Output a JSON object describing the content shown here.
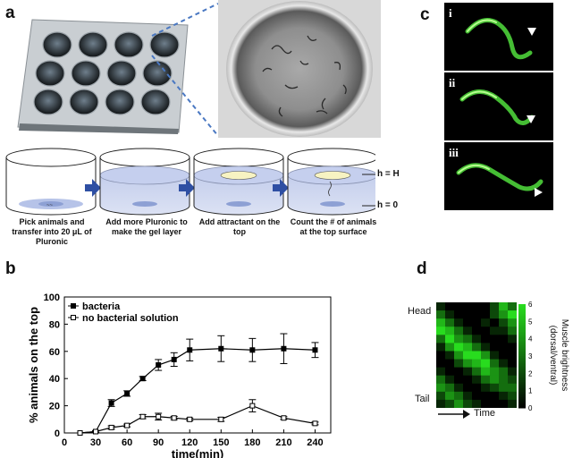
{
  "panels": {
    "a": {
      "letter": "a",
      "steps": [
        "Pick animals and transfer into 20 μL of Pluronic",
        "Add more Pluronic to make the gel layer",
        "Add attractant on the top",
        "Count the # of animals at the top surface"
      ],
      "height_labels": [
        "h = H",
        "h = 0"
      ]
    },
    "b": {
      "letter": "b"
    },
    "c": {
      "letter": "c",
      "subpanels": [
        "i",
        "ii",
        "iii"
      ]
    },
    "d": {
      "letter": "d",
      "head_label": "Head",
      "tail_label": "Tail",
      "time_label": "Time",
      "colorbar_label": "Muscle brightness (dorsal/ventral)",
      "colorbar_ticks": [
        "0",
        "1",
        "2",
        "3",
        "4",
        "5",
        "6"
      ],
      "heatmap": [
        [
          1,
          0,
          0,
          0,
          0,
          0,
          2,
          5,
          3
        ],
        [
          3,
          1,
          0,
          0,
          0,
          0,
          2,
          4,
          6
        ],
        [
          5,
          3,
          1,
          0,
          0,
          1,
          0,
          2,
          4
        ],
        [
          6,
          5,
          3,
          1,
          0,
          0,
          1,
          1,
          3
        ],
        [
          3,
          6,
          4,
          3,
          1,
          0,
          0,
          0,
          1
        ],
        [
          1,
          4,
          6,
          5,
          3,
          1,
          0,
          0,
          0
        ],
        [
          0,
          1,
          4,
          6,
          6,
          4,
          1,
          0,
          0
        ],
        [
          0,
          0,
          2,
          4,
          5,
          6,
          3,
          1,
          0
        ],
        [
          1,
          0,
          0,
          1,
          3,
          5,
          4,
          3,
          1
        ],
        [
          3,
          1,
          0,
          0,
          1,
          3,
          4,
          3,
          2
        ],
        [
          4,
          3,
          1,
          0,
          0,
          1,
          2,
          3,
          3
        ],
        [
          2,
          4,
          3,
          1,
          0,
          0,
          0,
          1,
          2
        ],
        [
          1,
          2,
          4,
          2,
          1,
          0,
          0,
          0,
          1
        ]
      ]
    }
  },
  "chart_data": {
    "type": "line",
    "xlabel": "time(min)",
    "ylabel": "% animals on the top",
    "xlim": [
      0,
      255
    ],
    "ylim": [
      0,
      100
    ],
    "xticks": [
      0,
      30,
      60,
      90,
      120,
      150,
      180,
      210,
      240
    ],
    "yticks": [
      0,
      20,
      40,
      60,
      80,
      100
    ],
    "legend_position": "top-left",
    "series": [
      {
        "name": "bacteria",
        "marker": "filled-square",
        "x": [
          15,
          30,
          45,
          60,
          75,
          90,
          105,
          120,
          150,
          180,
          210,
          240
        ],
        "y": [
          0,
          1,
          22,
          29,
          40,
          50,
          54,
          61,
          62,
          61,
          62,
          61
        ],
        "err": [
          0,
          0.8,
          2.5,
          2.0,
          1.5,
          4.0,
          5.0,
          8.0,
          9.5,
          8.5,
          11.0,
          5.5
        ]
      },
      {
        "name": "no bacterial solution",
        "marker": "open-square",
        "x": [
          15,
          30,
          45,
          60,
          75,
          90,
          105,
          120,
          150,
          180,
          210,
          240
        ],
        "y": [
          0,
          1,
          4,
          5.5,
          12,
          12,
          11,
          10,
          10,
          20,
          11,
          7
        ],
        "err": [
          0,
          0.5,
          1.2,
          1.0,
          1.5,
          2.5,
          1.2,
          1.0,
          1.5,
          4.5,
          1.0,
          1.0
        ]
      }
    ]
  }
}
